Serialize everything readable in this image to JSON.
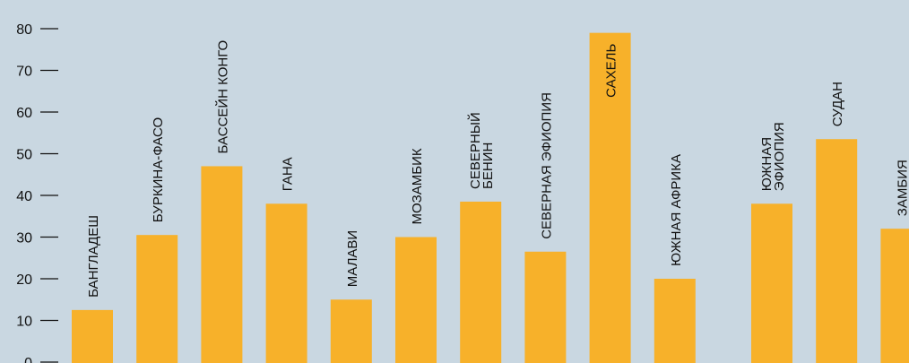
{
  "chart_data": {
    "type": "bar",
    "categories": [
      [
        "БАНГЛАДЕШ"
      ],
      [
        "БУРКИНА-ФАСО"
      ],
      [
        "БАССЕЙН КОНГО"
      ],
      [
        "ГАНА"
      ],
      [
        "МАЛАВИ"
      ],
      [
        "МОЗАМБИК"
      ],
      [
        "СЕВЕРНЫЙ",
        "БЕНИН"
      ],
      [
        "СЕВЕРНАЯ ЭФИОПИЯ"
      ],
      [
        "САХЕЛЬ"
      ],
      [
        "ЮЖНАЯ АФРИКА"
      ],
      [
        "ЮЖНАЯ",
        "ЭФИОПИЯ"
      ],
      [
        "СУДАН"
      ],
      [
        "ЗАМБИЯ"
      ]
    ],
    "values": [
      12.5,
      30.5,
      47,
      38,
      15,
      30,
      38.5,
      26.5,
      79,
      20,
      38,
      53.5,
      32
    ],
    "y_ticks": [
      0,
      10,
      20,
      30,
      40,
      50,
      60,
      70,
      80
    ],
    "ylim": [
      0,
      85
    ],
    "bar_color": "#f7b12a",
    "label_inside_bar_index": 8
  }
}
